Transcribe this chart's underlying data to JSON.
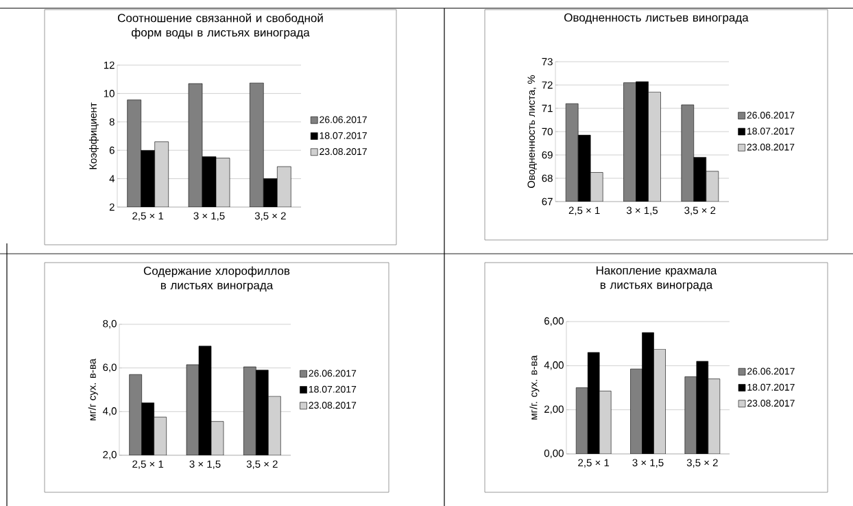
{
  "chart_data": [
    {
      "type": "bar",
      "title": "Соотношение связанной и свободной форм воды в листьях винограда",
      "ylabel": "Коэффициент",
      "categories": [
        "2,5 × 1",
        "3 × 1,5",
        "3,5 × 2"
      ],
      "ylim": [
        2,
        12
      ],
      "yticks": [
        2,
        4,
        6,
        8,
        10,
        12
      ],
      "grid": "y",
      "legend": "right",
      "series": [
        {
          "name": "26.06.2017",
          "color": "#808080",
          "values": [
            9.55,
            10.7,
            10.75
          ]
        },
        {
          "name": "18.07.2017",
          "color": "#000000",
          "values": [
            6.0,
            5.55,
            4.0
          ]
        },
        {
          "name": "23.08.2017",
          "color": "#d0d0d0",
          "values": [
            6.6,
            5.45,
            4.85
          ]
        }
      ]
    },
    {
      "type": "bar",
      "title": "Оводненность листьев винограда",
      "ylabel": "Оводненность листа, %",
      "categories": [
        "2,5 × 1",
        "3 × 1,5",
        "3,5 × 2"
      ],
      "ylim": [
        67,
        73
      ],
      "yticks": [
        67,
        68,
        69,
        70,
        71,
        72,
        73
      ],
      "grid": "y",
      "legend": "right",
      "series": [
        {
          "name": "26.06.2017",
          "color": "#808080",
          "values": [
            71.2,
            72.1,
            71.15
          ]
        },
        {
          "name": "18.07.2017",
          "color": "#000000",
          "values": [
            69.85,
            72.15,
            68.9
          ]
        },
        {
          "name": "23.08.2017",
          "color": "#d0d0d0",
          "values": [
            68.25,
            71.7,
            68.3
          ]
        }
      ]
    },
    {
      "type": "bar",
      "title": "Содержание хлорофиллов в листьях винограда",
      "ylabel": "мг/г сух. в-ва",
      "categories": [
        "2,5 × 1",
        "3 × 1,5",
        "3,5 × 2"
      ],
      "ylim": [
        2,
        8
      ],
      "yticks": [
        {
          "value": 2,
          "label": "2,0"
        },
        {
          "value": 4,
          "label": "4,0"
        },
        {
          "value": 6,
          "label": "6,0"
        },
        {
          "value": 8,
          "label": "8,0"
        }
      ],
      "grid": "y",
      "legend": "right",
      "series": [
        {
          "name": "26.06.2017",
          "color": "#808080",
          "values": [
            5.7,
            6.15,
            6.05
          ]
        },
        {
          "name": "18.07.2017",
          "color": "#000000",
          "values": [
            4.4,
            7.0,
            5.9
          ]
        },
        {
          "name": "23.08.2017",
          "color": "#d0d0d0",
          "values": [
            3.75,
            3.55,
            4.7
          ]
        }
      ]
    },
    {
      "type": "bar",
      "title": "Накопление крахмала в листьях винограда",
      "ylabel": "мг/г. сух. в-ва",
      "categories": [
        "2,5 × 1",
        "3 × 1,5",
        "3,5 × 2"
      ],
      "ylim": [
        0,
        6
      ],
      "yticks": [
        {
          "value": 0,
          "label": "0,00"
        },
        {
          "value": 2,
          "label": "2,00"
        },
        {
          "value": 4,
          "label": "4,00"
        },
        {
          "value": 6,
          "label": "6,00"
        }
      ],
      "grid": "y",
      "legend": "right",
      "series": [
        {
          "name": "26.06.2017",
          "color": "#808080",
          "values": [
            3.0,
            3.85,
            3.5
          ]
        },
        {
          "name": "18.07.2017",
          "color": "#000000",
          "values": [
            4.6,
            5.5,
            4.2
          ]
        },
        {
          "name": "23.08.2017",
          "color": "#d0d0d0",
          "values": [
            2.85,
            4.75,
            3.4
          ]
        }
      ]
    }
  ]
}
